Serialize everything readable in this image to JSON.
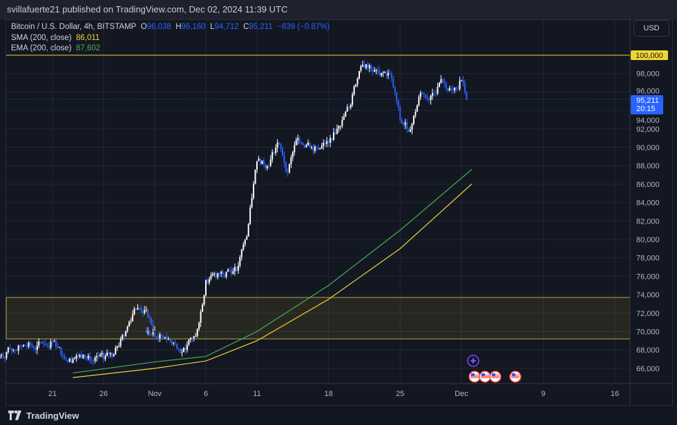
{
  "header": {
    "published": "svillafuerte21 published on TradingView.com, Dec 02, 2024 11:39 UTC"
  },
  "legend": {
    "symbol": "Bitcoin / U.S. Dollar, 4h, BITSTAMP",
    "o_label": "O",
    "o": "96,038",
    "h_label": "H",
    "h": "96,160",
    "l_label": "L",
    "l": "94,712",
    "c_label": "C",
    "c": "95,211",
    "change": "−839 (−0.87%)",
    "sma_label": "SMA (200, close)",
    "sma": "86,011",
    "ema_label": "EMA (200, close)",
    "ema": "87,602"
  },
  "price_scale": {
    "currency": "USD",
    "ticks": [
      "100,000",
      "98,000",
      "96,000",
      "94,000",
      "92,000",
      "90,000",
      "88,000",
      "86,000",
      "84,000",
      "82,000",
      "80,000",
      "78,000",
      "76,000",
      "74,000",
      "72,000",
      "70,000",
      "68,000",
      "66,000"
    ],
    "highlight_level": "100,000",
    "last_price": "95,211",
    "countdown": "20:15"
  },
  "time_scale": {
    "ticks": [
      "21",
      "26",
      "Nov",
      "6",
      "11",
      "18",
      "25",
      "Dec",
      "9",
      "16"
    ]
  },
  "footer": {
    "brand": "TradingView"
  },
  "colors": {
    "up": "#ffffff",
    "down": "#2962ff",
    "sma": "#f0d531",
    "ema": "#4caf50",
    "zone": "#f0d531",
    "last": "#2962ff"
  },
  "icons": [
    "sparkle-event-icon",
    "us-flag-economic-event-icon"
  ],
  "chart_data": {
    "type": "candlestick",
    "interval": "4h",
    "daily_closes": {
      "dates": [
        "Oct 16",
        "Oct 17",
        "Oct 18",
        "Oct 19",
        "Oct 20",
        "Oct 21",
        "Oct 22",
        "Oct 23",
        "Oct 24",
        "Oct 25",
        "Oct 26",
        "Oct 27",
        "Oct 28",
        "Oct 29",
        "Oct 30",
        "Oct 31",
        "Nov 1",
        "Nov 2",
        "Nov 3",
        "Nov 4",
        "Nov 5",
        "Nov 6",
        "Nov 7",
        "Nov 8",
        "Nov 9",
        "Nov 10",
        "Nov 11",
        "Nov 12",
        "Nov 13",
        "Nov 14",
        "Nov 15",
        "Nov 16",
        "Nov 17",
        "Nov 18",
        "Nov 19",
        "Nov 20",
        "Nov 21",
        "Nov 22",
        "Nov 23",
        "Nov 24",
        "Nov 25",
        "Nov 26",
        "Nov 27",
        "Nov 28",
        "Nov 29",
        "Nov 30",
        "Dec 1",
        "Dec 2"
      ],
      "values": [
        67500,
        68000,
        68400,
        68400,
        68700,
        68900,
        67400,
        67000,
        67500,
        66800,
        67000,
        67500,
        69500,
        72500,
        72300,
        70200,
        69500,
        69400,
        68700,
        68000,
        69500,
        75600,
        75900,
        76500,
        76600,
        80300,
        88500,
        88000,
        90500,
        87300,
        91000,
        90500,
        89800,
        90500,
        92300,
        94300,
        98300,
        98900,
        97800,
        98000,
        93000,
        91900,
        95900,
        95600,
        97400,
        96400,
        97300,
        95211
      ]
    },
    "sma_200": {
      "dates": [
        "Oct 23",
        "Nov 1",
        "Nov 6",
        "Nov 11",
        "Nov 18",
        "Nov 25",
        "Dec 2"
      ],
      "values": [
        65000,
        66000,
        66800,
        69000,
        73500,
        79000,
        86011
      ]
    },
    "ema_200": {
      "dates": [
        "Oct 23",
        "Nov 1",
        "Nov 6",
        "Nov 11",
        "Nov 18",
        "Nov 25",
        "Dec 2"
      ],
      "values": [
        65500,
        66700,
        67300,
        70000,
        75000,
        81000,
        87602
      ]
    },
    "horizontal_line": 100000,
    "zone": [
      69200,
      73700
    ],
    "ylim": [
      64500,
      102500
    ]
  }
}
